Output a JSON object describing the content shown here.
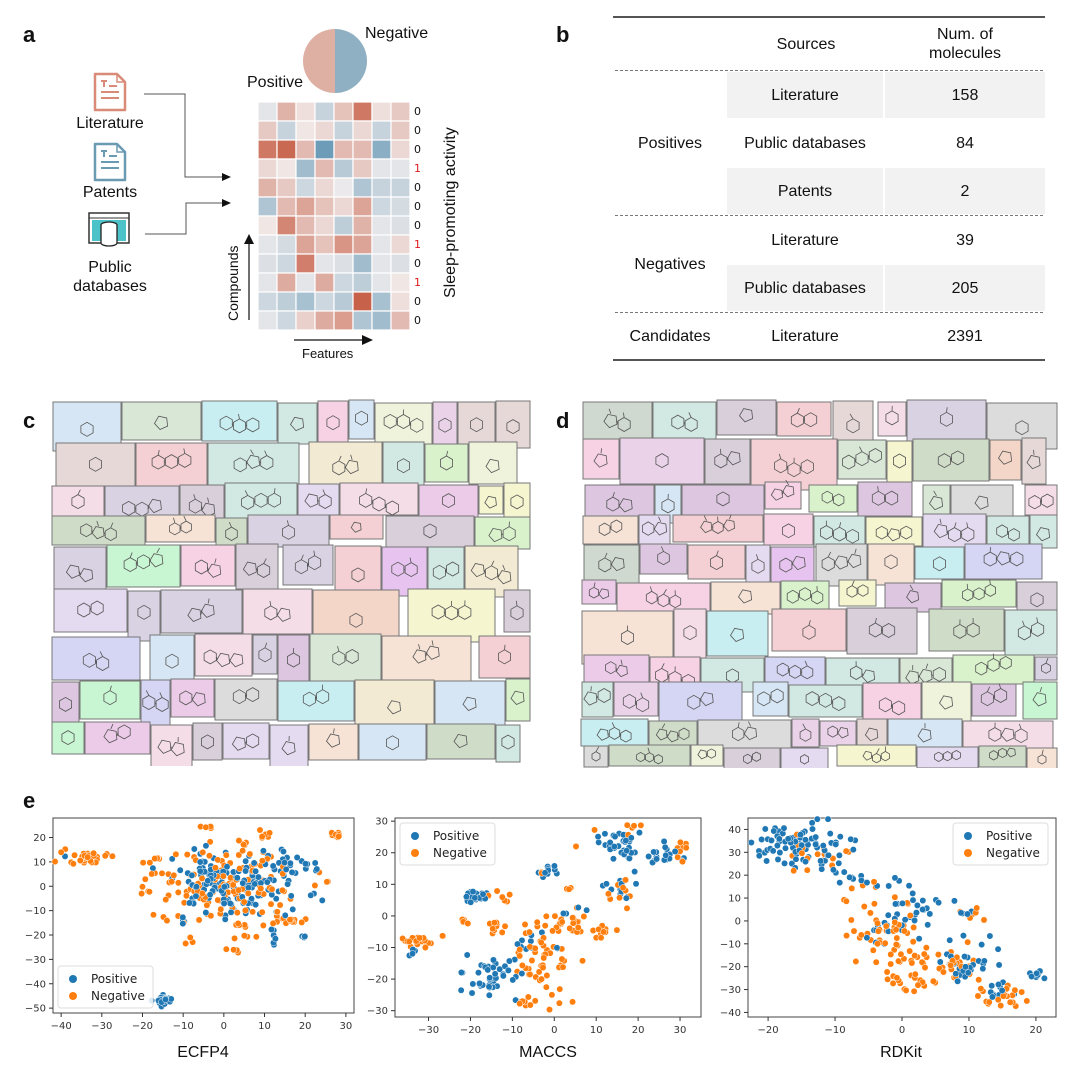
{
  "panel_labels": {
    "a": "a",
    "b": "b",
    "c": "c",
    "d": "d",
    "e": "e"
  },
  "panel_a": {
    "sources": [
      {
        "label": "Literature",
        "icon": "document-icon",
        "color": "#d98b78"
      },
      {
        "label": "Patents",
        "icon": "document-icon",
        "color": "#6b9ab3"
      },
      {
        "label": "Public databases",
        "label_lines": [
          "Public",
          "databases"
        ],
        "icon": "database-window-icon",
        "color": "#4cc3c8"
      }
    ],
    "pie": {
      "positive_label": "Positive",
      "negative_label": "Negative",
      "positive_color": "#deafa3",
      "negative_color": "#8fb0c2",
      "positive_share": 0.5
    },
    "heatmap": {
      "row_axis_label": "Compounds",
      "col_axis_label": "Features",
      "activity_label": "Sleep-promoting activity",
      "activity": [
        "0",
        "0",
        "0",
        "1",
        "0",
        "0",
        "0",
        "1",
        "0",
        "1",
        "0",
        "0"
      ],
      "values": [
        [
          -0.1,
          0.4,
          0.1,
          -0.3,
          0.3,
          0.8,
          0.1,
          0.25
        ],
        [
          0.25,
          -0.3,
          0.05,
          0.15,
          -0.3,
          0.15,
          -0.3,
          0.25
        ],
        [
          0.8,
          0.9,
          0.35,
          -0.9,
          0.35,
          0.35,
          -0.7,
          0.15
        ],
        [
          0.15,
          0.05,
          -0.55,
          0.35,
          -0.4,
          0.25,
          -0.1,
          -0.1
        ],
        [
          0.4,
          0.25,
          -0.25,
          0.15,
          -0.05,
          -0.45,
          -0.3,
          -0.3
        ],
        [
          -0.45,
          0.35,
          0.5,
          0.3,
          0.15,
          0.5,
          -0.25,
          -0.2
        ],
        [
          0.05,
          0.7,
          0.35,
          0.15,
          -0.35,
          0.4,
          -0.1,
          -0.15
        ],
        [
          -0.1,
          -0.2,
          0.5,
          0.3,
          0.6,
          0.5,
          -0.1,
          0.15
        ],
        [
          -0.15,
          -0.25,
          0.75,
          -0.1,
          -0.15,
          -0.55,
          -0.1,
          -0.15
        ],
        [
          -0.1,
          0.45,
          -0.1,
          0.45,
          -0.25,
          -0.35,
          -0.1,
          0.05
        ],
        [
          -0.25,
          -0.35,
          -0.5,
          -0.25,
          -0.4,
          0.95,
          -0.5,
          0.1
        ],
        [
          -0.1,
          -0.25,
          0.2,
          0.45,
          0.55,
          -0.45,
          -0.55,
          0.35
        ]
      ],
      "colors": {
        "pos": "#c65a40",
        "neutral": "#f2eeee",
        "neg": "#5e93b2"
      }
    }
  },
  "panel_b": {
    "headers": [
      "",
      "Sources",
      "Num. of molecules"
    ],
    "header_lines": [
      "Num. of",
      "molecules"
    ],
    "groups": [
      {
        "name": "Positives",
        "rows": [
          {
            "source": "Literature",
            "count": "158"
          },
          {
            "source": "Public databases",
            "count": "84"
          },
          {
            "source": "Patents",
            "count": "2"
          }
        ]
      },
      {
        "name": "Negatives",
        "rows": [
          {
            "source": "Literature",
            "count": "39"
          },
          {
            "source": "Public databases",
            "count": "205"
          }
        ]
      },
      {
        "name": "Candidates",
        "rows": [
          {
            "source": "Literature",
            "count": "2391"
          }
        ]
      }
    ]
  },
  "panel_c": {
    "description": "Collage of positive molecule structures",
    "molecule_count": 78
  },
  "panel_d": {
    "description": "Collage of negative molecule structures",
    "molecule_count": 120
  },
  "collage_palette": [
    "#d9f2cc",
    "#cfdcc8",
    "#f6e3d6",
    "#c8f5d2",
    "#dcc6e0",
    "#f2ead2",
    "#d8e7d6",
    "#eccbe8",
    "#e7c4ef",
    "#c8eef1",
    "#ead2e9",
    "#dcdcdc",
    "#d9d2e3",
    "#f3d6c8",
    "#cfd9cf",
    "#f0f3dc",
    "#e4dbf0",
    "#d6e6f4",
    "#f6d2e4",
    "#d4d6f4",
    "#f5f5d0",
    "#d2e8e2",
    "#e7d8d8",
    "#f4cfd3",
    "#d8cfdb",
    "#f5dde8"
  ],
  "panel_e": {
    "legend": {
      "positive": "Positive",
      "negative": "Negative"
    },
    "colors": {
      "positive": "#1f77b4",
      "negative": "#ff7f0e"
    }
  },
  "chart_data": [
    {
      "type": "scatter",
      "title": "",
      "xlabel": "ECFP4",
      "ylabel": "",
      "xlim": [
        -42,
        32
      ],
      "ylim": [
        -52,
        28
      ],
      "xticks": [
        -40,
        -30,
        -20,
        -10,
        0,
        10,
        20,
        30
      ],
      "yticks": [
        -50,
        -40,
        -30,
        -20,
        -10,
        0,
        10,
        20
      ],
      "legend_position": "lower-left",
      "grid": false,
      "series": [
        {
          "name": "Positive",
          "clusters": [
            {
              "cx": 2,
              "cy": 0,
              "sx": 7,
              "sy": 6,
              "n": 150
            },
            {
              "cx": 18,
              "cy": 8,
              "sx": 4,
              "sy": 3,
              "n": 25
            },
            {
              "cx": -15,
              "cy": -46.5,
              "sx": 1,
              "sy": 1,
              "n": 20
            },
            {
              "cx": 12,
              "cy": -21,
              "sx": 0.6,
              "sy": 1.5,
              "n": 5
            },
            {
              "cx": 19,
              "cy": -21,
              "sx": 0.6,
              "sy": 0.3,
              "n": 3
            },
            {
              "cx": -10,
              "cy": -14,
              "sx": 0.4,
              "sy": 1,
              "n": 3
            },
            {
              "cx": -39,
              "cy": 12.5,
              "sx": 0.3,
              "sy": 0.3,
              "n": 1
            },
            {
              "cx": 22,
              "cy": -4,
              "sx": 2,
              "sy": 1,
              "n": 3
            }
          ]
        },
        {
          "name": "Negative",
          "clusters": [
            {
              "cx": 2,
              "cy": 0,
              "sx": 9,
              "sy": 8,
              "n": 130
            },
            {
              "cx": -34,
              "cy": 12,
              "sx": 3,
              "sy": 1.7,
              "n": 30
            },
            {
              "cx": 17,
              "cy": -14,
              "sx": 2.5,
              "sy": 1,
              "n": 15
            },
            {
              "cx": 27,
              "cy": 21,
              "sx": 1,
              "sy": 0.8,
              "n": 8
            },
            {
              "cx": 11,
              "cy": 21,
              "sx": 1,
              "sy": 1,
              "n": 6
            },
            {
              "cx": -4,
              "cy": 24,
              "sx": 1,
              "sy": 0.3,
              "n": 4
            },
            {
              "cx": 4,
              "cy": -16,
              "sx": 0.8,
              "sy": 1,
              "n": 5
            },
            {
              "cx": 4,
              "cy": 18,
              "sx": 1,
              "sy": 1,
              "n": 4
            },
            {
              "cx": -15,
              "cy": -13,
              "sx": 1,
              "sy": 0.6,
              "n": 3
            },
            {
              "cx": -9,
              "cy": -22.5,
              "sx": 0.7,
              "sy": 0.6,
              "n": 3
            },
            {
              "cx": 2.5,
              "cy": -26.5,
              "sx": 0.6,
              "sy": 0.4,
              "n": 3
            },
            {
              "cx": -19,
              "cy": -2,
              "sx": 1,
              "sy": 0.6,
              "n": 3
            },
            {
              "cx": -16,
              "cy": 12,
              "sx": 0.8,
              "sy": 0.7,
              "n": 4
            },
            {
              "cx": -16,
              "cy": 5,
              "sx": 1,
              "sy": 0.5,
              "n": 4
            },
            {
              "cx": 25.5,
              "cy": 2,
              "sx": 0.3,
              "sy": 0.4,
              "n": 2
            },
            {
              "cx": 5,
              "cy": -21,
              "sx": 2,
              "sy": 0.5,
              "n": 4
            }
          ]
        }
      ]
    },
    {
      "type": "scatter",
      "title": "",
      "xlabel": "MACCS",
      "ylabel": "",
      "xlim": [
        -38,
        35
      ],
      "ylim": [
        -32,
        31
      ],
      "xticks": [
        -30,
        -20,
        -10,
        0,
        10,
        20,
        30
      ],
      "yticks": [
        -30,
        -20,
        -10,
        0,
        10,
        20,
        30
      ],
      "legend_position": "upper-left",
      "grid": false,
      "series": [
        {
          "name": "Positive",
          "clusters": [
            {
              "cx": -19,
              "cy": 6,
              "sx": 1.2,
              "sy": 1,
              "n": 25
            },
            {
              "cx": 16,
              "cy": 23,
              "sx": 3,
              "sy": 3,
              "n": 35
            },
            {
              "cx": 27,
              "cy": 20,
              "sx": 3,
              "sy": 2,
              "n": 20
            },
            {
              "cx": 15,
              "cy": 9,
              "sx": 3,
              "sy": 2,
              "n": 15
            },
            {
              "cx": -15,
              "cy": -19,
              "sx": 5,
              "sy": 4,
              "n": 45
            },
            {
              "cx": -1.5,
              "cy": 14,
              "sx": 1.5,
              "sy": 1,
              "n": 10
            },
            {
              "cx": -34,
              "cy": -11.5,
              "sx": 0.6,
              "sy": 0.6,
              "n": 4
            },
            {
              "cx": -6,
              "cy": -8,
              "sx": 2,
              "sy": 2,
              "n": 6
            },
            {
              "cx": 4,
              "cy": 1.5,
              "sx": 1.5,
              "sy": 1.5,
              "n": 4
            },
            {
              "cx": 0,
              "cy": -10,
              "sx": 3,
              "sy": 1,
              "n": 4
            }
          ]
        },
        {
          "name": "Negative",
          "clusters": [
            {
              "cx": -33,
              "cy": -8,
              "sx": 1.2,
              "sy": 1,
              "n": 22
            },
            {
              "cx": 3,
              "cy": -2,
              "sx": 3,
              "sy": 2,
              "n": 25
            },
            {
              "cx": -3,
              "cy": -12,
              "sx": 4,
              "sy": 5,
              "n": 45
            },
            {
              "cx": -14,
              "cy": -4,
              "sx": 1.5,
              "sy": 1,
              "n": 10
            },
            {
              "cx": 11,
              "cy": -5,
              "sx": 1.5,
              "sy": 1,
              "n": 10
            },
            {
              "cx": -7,
              "cy": -28,
              "sx": 1,
              "sy": 1,
              "n": 8
            },
            {
              "cx": 0,
              "cy": -27,
              "sx": 1.5,
              "sy": 1,
              "n": 5
            },
            {
              "cx": 30,
              "cy": 20,
              "sx": 1.5,
              "sy": 2,
              "n": 8
            },
            {
              "cx": 17,
              "cy": 8,
              "sx": 3,
              "sy": 2,
              "n": 10
            },
            {
              "cx": 16,
              "cy": 27,
              "sx": 3,
              "sy": 1.5,
              "n": 6
            },
            {
              "cx": -15,
              "cy": 8,
              "sx": 1.5,
              "sy": 1,
              "n": 4
            },
            {
              "cx": -22,
              "cy": -2,
              "sx": 0.7,
              "sy": 0.8,
              "n": 4
            },
            {
              "cx": -11,
              "cy": 5,
              "sx": 0.8,
              "sy": 0.6,
              "n": 3
            },
            {
              "cx": 3,
              "cy": 8.5,
              "sx": 0.5,
              "sy": 0.3,
              "n": 3
            },
            {
              "cx": -27,
              "cy": -6.5,
              "sx": 1,
              "sy": 0.4,
              "n": 2
            },
            {
              "cx": 5,
              "cy": 22,
              "sx": 0.2,
              "sy": 0.2,
              "n": 1
            },
            {
              "cx": -3.5,
              "cy": 14,
              "sx": 0.3,
              "sy": 0.3,
              "n": 2
            }
          ]
        }
      ]
    },
    {
      "type": "scatter",
      "title": "",
      "xlabel": "RDKit",
      "ylabel": "",
      "xlim": [
        -23,
        23
      ],
      "ylim": [
        -42,
        45
      ],
      "xticks": [
        -20,
        -10,
        0,
        10,
        20
      ],
      "yticks": [
        -40,
        -30,
        -20,
        -10,
        0,
        10,
        20,
        30,
        40
      ],
      "legend_position": "upper-right",
      "grid": false,
      "series": [
        {
          "name": "Positive",
          "clusters": [
            {
              "cx": -15,
              "cy": 34,
              "sx": 3.5,
              "sy": 5,
              "n": 80
            },
            {
              "cx": -8,
              "cy": 20,
              "sx": 1.5,
              "sy": 2,
              "n": 10
            },
            {
              "cx": 1,
              "cy": 5,
              "sx": 3,
              "sy": 6,
              "n": 35
            },
            {
              "cx": 10,
              "cy": -20,
              "sx": 2.5,
              "sy": 5,
              "n": 30
            },
            {
              "cx": 14,
              "cy": -30,
              "sx": 1.5,
              "sy": 4,
              "n": 12
            },
            {
              "cx": 20.5,
              "cy": -23.5,
              "sx": 0.5,
              "sy": 0.7,
              "n": 10
            },
            {
              "cx": 10,
              "cy": 4,
              "sx": 1,
              "sy": 1,
              "n": 6
            },
            {
              "cx": -3,
              "cy": -7,
              "sx": 1.5,
              "sy": 3,
              "n": 6
            }
          ]
        },
        {
          "name": "Negative",
          "clusters": [
            {
              "cx": -14,
              "cy": 30,
              "sx": 3,
              "sy": 4,
              "n": 18
            },
            {
              "cx": -2,
              "cy": -3,
              "sx": 3,
              "sy": 7,
              "n": 45
            },
            {
              "cx": 3,
              "cy": -15,
              "sx": 3,
              "sy": 3,
              "n": 20
            },
            {
              "cx": 2,
              "cy": -26,
              "sx": 2.5,
              "sy": 2,
              "n": 20
            },
            {
              "cx": 9,
              "cy": -22,
              "sx": 2.5,
              "sy": 3,
              "n": 20
            },
            {
              "cx": 15,
              "cy": -33,
              "sx": 2,
              "sy": 2,
              "n": 20
            },
            {
              "cx": 10,
              "cy": 3,
              "sx": 1,
              "sy": 1.5,
              "n": 6
            },
            {
              "cx": -6,
              "cy": 12,
              "sx": 1,
              "sy": 3,
              "n": 5
            }
          ]
        }
      ]
    }
  ]
}
